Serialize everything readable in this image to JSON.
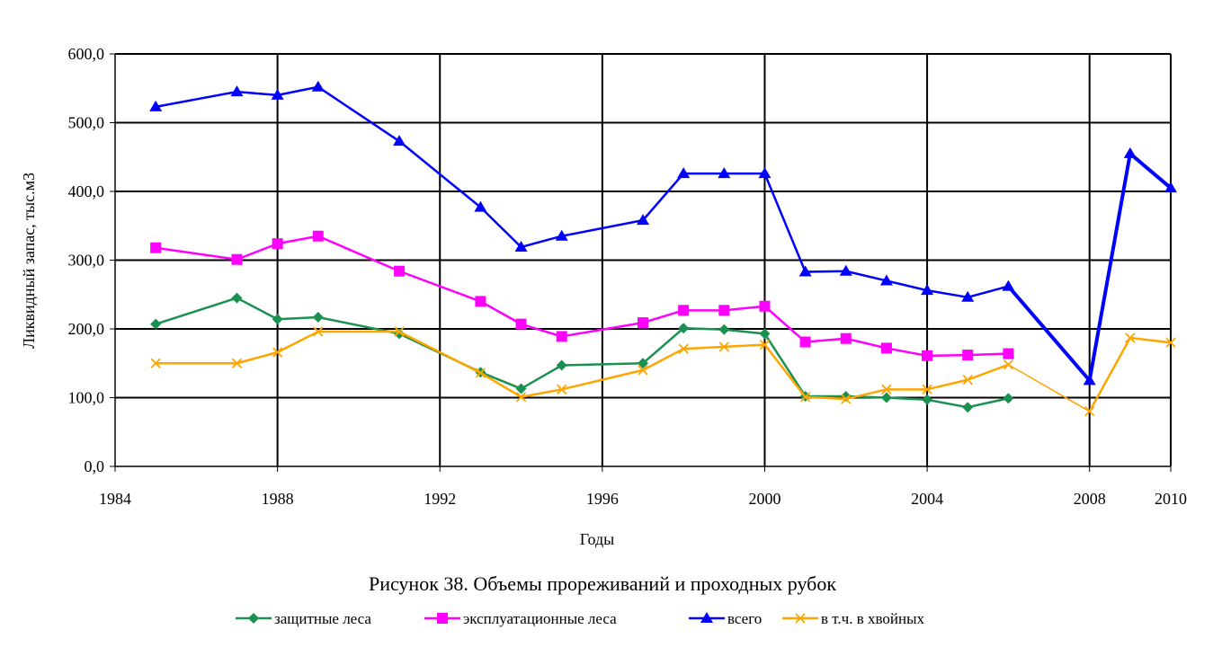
{
  "chart_data": {
    "type": "line",
    "xlabel": "Годы",
    "ylabel": "Ликвидный запас, тыс.м3",
    "caption": "Рисунок 38. Объемы прореживаний и проходных рубок",
    "xlim": [
      1984,
      2010
    ],
    "ylim": [
      0,
      600
    ],
    "x_ticks": [
      1984,
      1988,
      1992,
      1996,
      2000,
      2004,
      2008,
      2010
    ],
    "x_tick_labels": [
      "1984",
      "1988",
      "1992",
      "1996",
      "2000",
      "2004",
      "2008",
      "2010"
    ],
    "y_ticks": [
      0,
      100,
      200,
      300,
      400,
      500,
      600
    ],
    "y_tick_labels": [
      "0,0",
      "100,0",
      "200,0",
      "300,0",
      "400,0",
      "500,0",
      "600,0"
    ],
    "grid": true,
    "legend_position": "bottom",
    "series": [
      {
        "name": "защитные леса",
        "color": "#1a9150",
        "marker": "diamond",
        "x": [
          1985,
          1987,
          1988,
          1989,
          1991,
          1993,
          1994,
          1995,
          1997,
          1998,
          1999,
          2000,
          2001,
          2002,
          2003,
          2004,
          2005,
          2006
        ],
        "y": [
          207,
          245,
          214,
          217,
          193,
          137,
          113,
          147,
          150,
          201,
          199,
          193,
          102,
          102,
          100,
          97,
          86,
          99
        ]
      },
      {
        "name": "эксплуатационные леса",
        "color": "#ff00ff",
        "marker": "square",
        "x": [
          1985,
          1987,
          1988,
          1989,
          1991,
          1993,
          1994,
          1995,
          1997,
          1998,
          1999,
          2000,
          2001,
          2002,
          2003,
          2004,
          2005,
          2006
        ],
        "y": [
          318,
          301,
          324,
          335,
          284,
          240,
          207,
          189,
          209,
          227,
          227,
          233,
          181,
          186,
          172,
          161,
          162,
          164
        ]
      },
      {
        "name": "всего",
        "color": "#0000ff",
        "marker": "triangle",
        "x": [
          1985,
          1987,
          1988,
          1989,
          1991,
          1993,
          1994,
          1995,
          1997,
          1998,
          1999,
          2000,
          2001,
          2002,
          2003,
          2004,
          2005,
          2006,
          2008,
          2009,
          2010
        ],
        "y": [
          523,
          545,
          540,
          552,
          473,
          377,
          319,
          335,
          358,
          426,
          426,
          426,
          283,
          284,
          270,
          256,
          246,
          262,
          125,
          455,
          405
        ]
      },
      {
        "name": "в т.ч. в хвойных",
        "color": "#ffa500",
        "marker": "x",
        "x": [
          1985,
          1987,
          1988,
          1989,
          1991,
          1993,
          1994,
          1995,
          1997,
          1998,
          1999,
          2000,
          2001,
          2002,
          2003,
          2004,
          2005,
          2006,
          2008,
          2009,
          2010
        ],
        "y": [
          150,
          150,
          166,
          196,
          196,
          136,
          101,
          112,
          140,
          171,
          174,
          177,
          101,
          98,
          112,
          112,
          126,
          148,
          80,
          187,
          180
        ]
      }
    ]
  }
}
